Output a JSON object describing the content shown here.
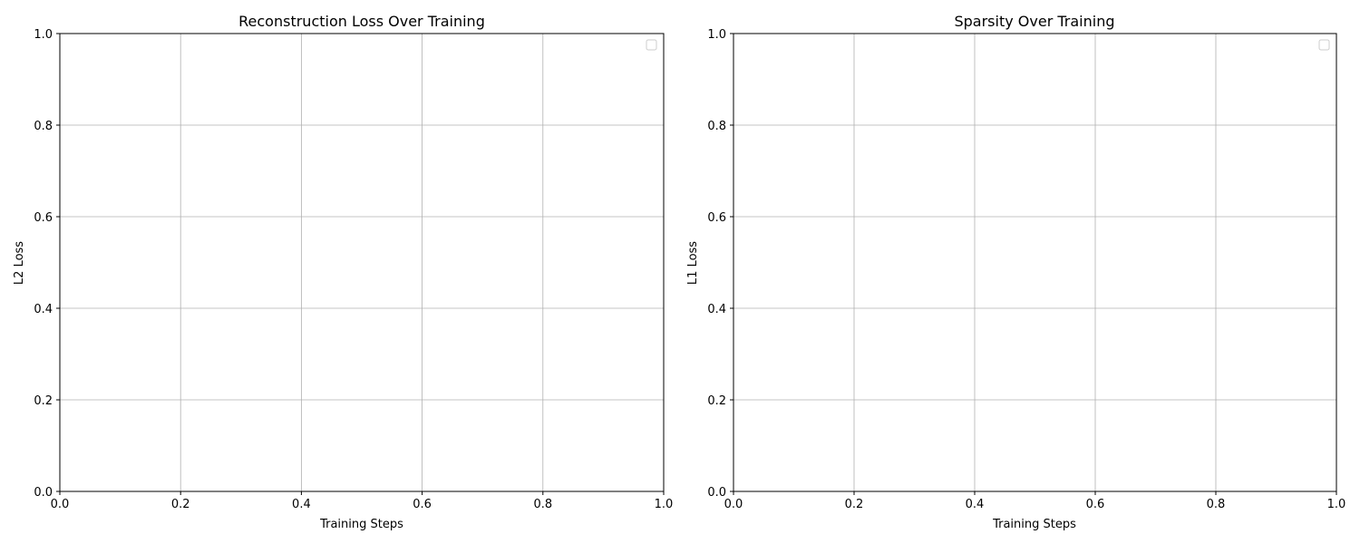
{
  "chart_data": [
    {
      "type": "line",
      "title": "Reconstruction Loss Over Training",
      "xlabel": "Training Steps",
      "ylabel": "L2 Loss",
      "xlim": [
        0.0,
        1.0
      ],
      "ylim": [
        0.0,
        1.0
      ],
      "x_ticks": [
        "0.0",
        "0.2",
        "0.4",
        "0.6",
        "0.8",
        "1.0"
      ],
      "y_ticks": [
        "0.0",
        "0.2",
        "0.4",
        "0.6",
        "0.8",
        "1.0"
      ],
      "grid": true,
      "legend": "top-right",
      "series": []
    },
    {
      "type": "line",
      "title": "Sparsity Over Training",
      "xlabel": "Training Steps",
      "ylabel": "L1 Loss",
      "xlim": [
        0.0,
        1.0
      ],
      "ylim": [
        0.0,
        1.0
      ],
      "x_ticks": [
        "0.0",
        "0.2",
        "0.4",
        "0.6",
        "0.8",
        "1.0"
      ],
      "y_ticks": [
        "0.0",
        "0.2",
        "0.4",
        "0.6",
        "0.8",
        "1.0"
      ],
      "grid": true,
      "legend": "top-right",
      "series": []
    }
  ],
  "colors": {
    "grid": "#b0b0b0",
    "axis": "#000000",
    "legend_border": "#cccccc"
  }
}
